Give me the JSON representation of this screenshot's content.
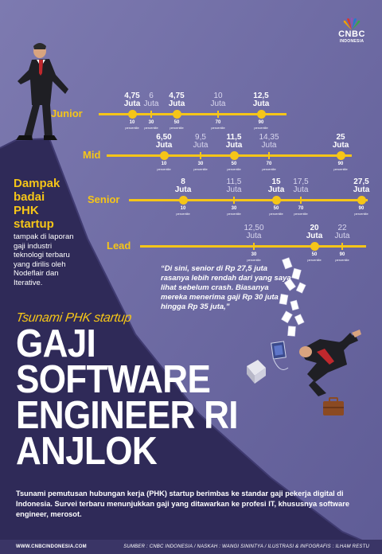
{
  "brand": {
    "name": "CNBC",
    "sub": "INDONESIA"
  },
  "rows": [
    {
      "label": "Junior",
      "points": [
        {
          "value": "4,75",
          "unit": "Juta",
          "pct": "10",
          "highlight": true
        },
        {
          "value": "6",
          "unit": "Juta",
          "pct": "30",
          "highlight": false
        },
        {
          "value": "4,75",
          "unit": "Juta",
          "pct": "50",
          "highlight": true
        },
        {
          "value": "10",
          "unit": "Juta",
          "pct": "70",
          "highlight": false
        },
        {
          "value": "12,5",
          "unit": "Juta",
          "pct": "90",
          "highlight": true
        }
      ]
    },
    {
      "label": "Mid",
      "points": [
        {
          "value": "6,50",
          "unit": "Juta",
          "pct": "10",
          "highlight": true
        },
        {
          "value": "9,5",
          "unit": "Juta",
          "pct": "30",
          "highlight": false
        },
        {
          "value": "11,5",
          "unit": "Juta",
          "pct": "50",
          "highlight": true
        },
        {
          "value": "14,35",
          "unit": "Juta",
          "pct": "70",
          "highlight": false
        },
        {
          "value": "25",
          "unit": "Juta",
          "pct": "90",
          "highlight": true
        }
      ]
    },
    {
      "label": "Senior",
      "points": [
        {
          "value": "8",
          "unit": "Juta",
          "pct": "10",
          "highlight": true
        },
        {
          "value": "11,5",
          "unit": "Juta",
          "pct": "30",
          "highlight": false
        },
        {
          "value": "15",
          "unit": "Juta",
          "pct": "50",
          "highlight": true
        },
        {
          "value": "17,5",
          "unit": "Juta",
          "pct": "70",
          "highlight": false
        },
        {
          "value": "27,5",
          "unit": "Juta",
          "pct": "90",
          "highlight": true
        }
      ]
    },
    {
      "label": "Lead",
      "points": [
        {
          "value": "12,50",
          "unit": "Juta",
          "pct": "30",
          "highlight": false
        },
        {
          "value": "20",
          "unit": "Juta",
          "pct": "50",
          "highlight": true
        },
        {
          "value": "22",
          "unit": "Juta",
          "pct": "90",
          "highlight": false
        }
      ]
    }
  ],
  "percentile_word": "percentile",
  "side": {
    "title_lines": [
      "Dampak",
      "badai",
      "PHK",
      "startup"
    ],
    "text": "tampak di laporan gaji industri teknologi terbaru yang dirilis oleh Nodeflair dan Iterative."
  },
  "quote": "“Di sini, senior di Rp 27,5 juta rasanya lebih rendah dari yang saya lihat sebelum crash. Biasanya mereka menerima gaji Rp 30 juta hingga Rp 35 juta,”",
  "kicker": "Tsunami PHK startup",
  "headline": [
    "GAJI",
    "SOFTWARE",
    "ENGINEER RI",
    "ANJLOK"
  ],
  "body": "Tsunami pemutusan hubungan kerja (PHK) startup berimbas ke standar gaji pekerja digital di Indonesia. Survei terbaru menunjukkan gaji yang ditawarkan ke profesi IT, khususnya software engineer, merosot.",
  "footer": {
    "url": "WWW.CNBCINDONESIA.COM",
    "credit": "SUMBER : CNBC INDONESIA / NASKAH : WANGI SININTYA / ILUSTRASI & INFOGRAFIS : ILHAM RESTU"
  },
  "colors": {
    "accent": "#f5c518",
    "bg": "#6d6a9f",
    "mountain": "#2f2a58",
    "footer": "#3a3566"
  }
}
